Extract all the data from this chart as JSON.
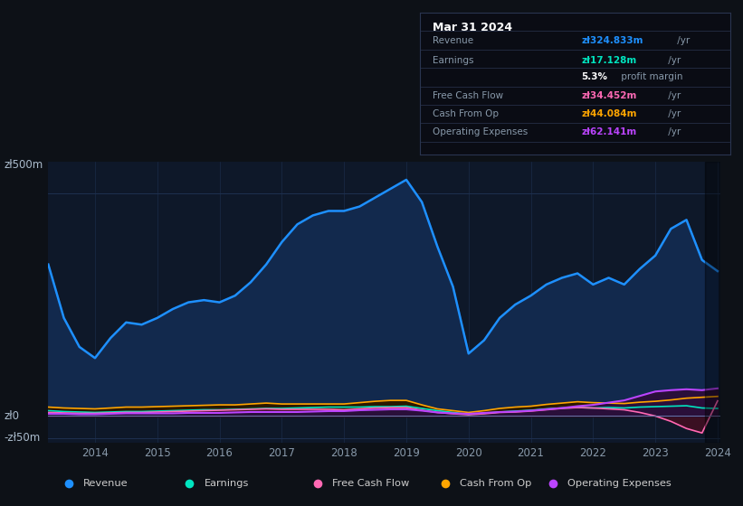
{
  "bg_color": "#0d1117",
  "plot_bg_color": "#0e1829",
  "grid_color": "#1e3050",
  "title": "Mar 31 2024",
  "info_rows": [
    {
      "label": "Revenue",
      "value": "zł324.833m",
      "unit": " /yr",
      "value_color": "#1e90ff",
      "label_color": "#8899aa"
    },
    {
      "label": "Earnings",
      "value": "zł17.128m",
      "unit": " /yr",
      "value_color": "#00e5c0",
      "label_color": "#8899aa"
    },
    {
      "label": "",
      "value": "5.3%",
      "unit": " profit margin",
      "value_color": "#ffffff",
      "label_color": "#8899aa"
    },
    {
      "label": "Free Cash Flow",
      "value": "zł34.452m",
      "unit": " /yr",
      "value_color": "#ff69b4",
      "label_color": "#8899aa"
    },
    {
      "label": "Cash From Op",
      "value": "zł44.084m",
      "unit": " /yr",
      "value_color": "#ffa500",
      "label_color": "#8899aa"
    },
    {
      "label": "Operating Expenses",
      "value": "zł62.141m",
      "unit": " /yr",
      "value_color": "#bb44ff",
      "label_color": "#8899aa"
    }
  ],
  "years": [
    2013.25,
    2013.5,
    2013.75,
    2014.0,
    2014.25,
    2014.5,
    2014.75,
    2015.0,
    2015.25,
    2015.5,
    2015.75,
    2016.0,
    2016.25,
    2016.5,
    2016.75,
    2017.0,
    2017.25,
    2017.5,
    2017.75,
    2018.0,
    2018.25,
    2018.5,
    2018.75,
    2019.0,
    2019.25,
    2019.5,
    2019.75,
    2020.0,
    2020.25,
    2020.5,
    2020.75,
    2021.0,
    2021.25,
    2021.5,
    2021.75,
    2022.0,
    2022.25,
    2022.5,
    2022.75,
    2023.0,
    2023.25,
    2023.5,
    2023.75,
    2024.0
  ],
  "revenue": [
    340,
    220,
    155,
    130,
    175,
    210,
    205,
    220,
    240,
    255,
    260,
    255,
    270,
    300,
    340,
    390,
    430,
    450,
    460,
    460,
    470,
    490,
    510,
    530,
    480,
    380,
    290,
    140,
    170,
    220,
    250,
    270,
    295,
    310,
    320,
    295,
    310,
    295,
    330,
    360,
    420,
    440,
    350,
    325
  ],
  "earnings": [
    12,
    10,
    9,
    8,
    9,
    10,
    10,
    11,
    12,
    13,
    14,
    14,
    15,
    16,
    17,
    17,
    18,
    19,
    20,
    20,
    20,
    21,
    21,
    22,
    17,
    12,
    8,
    4,
    6,
    9,
    11,
    13,
    16,
    18,
    19,
    18,
    19,
    18,
    20,
    21,
    22,
    23,
    18,
    17
  ],
  "free_cash_flow": [
    8,
    7,
    6,
    6,
    7,
    8,
    8,
    9,
    10,
    11,
    12,
    13,
    14,
    15,
    16,
    15,
    15,
    15,
    15,
    14,
    16,
    18,
    19,
    19,
    13,
    8,
    5,
    3,
    5,
    8,
    9,
    11,
    14,
    17,
    19,
    18,
    16,
    14,
    8,
    0,
    -12,
    -28,
    -38,
    34
  ],
  "cash_from_op": [
    20,
    18,
    17,
    16,
    18,
    20,
    20,
    21,
    22,
    23,
    24,
    25,
    25,
    27,
    29,
    27,
    27,
    27,
    27,
    27,
    30,
    33,
    35,
    35,
    25,
    16,
    12,
    8,
    12,
    17,
    20,
    22,
    26,
    29,
    32,
    30,
    29,
    28,
    31,
    33,
    36,
    40,
    42,
    44
  ],
  "operating_expenses": [
    5,
    5,
    4,
    4,
    5,
    6,
    6,
    6,
    6,
    7,
    7,
    7,
    8,
    9,
    9,
    9,
    9,
    10,
    11,
    11,
    13,
    14,
    15,
    15,
    12,
    8,
    6,
    5,
    7,
    9,
    10,
    12,
    15,
    18,
    22,
    25,
    30,
    35,
    45,
    55,
    58,
    60,
    58,
    62
  ],
  "ylim": [
    -60,
    570
  ],
  "ytick_vals": [
    -50,
    0,
    500
  ],
  "ytick_labels": [
    "-zł50m",
    "zł0",
    "zł500m"
  ],
  "xtick_vals": [
    2014,
    2015,
    2016,
    2017,
    2018,
    2019,
    2020,
    2021,
    2022,
    2023,
    2024
  ],
  "revenue_line": "#1e90ff",
  "revenue_fill": "#12294d",
  "earnings_line": "#00e5c0",
  "earnings_fill": "#0d2e28",
  "fcf_line": "#ff69b4",
  "fcf_fill": "#3a0f22",
  "cfo_line": "#ffa500",
  "cfo_fill": "#2a1800",
  "opex_line": "#bb44ff",
  "opex_fill": "#2a0f3a",
  "legend_items": [
    {
      "label": "Revenue",
      "color": "#1e90ff"
    },
    {
      "label": "Earnings",
      "color": "#00e5c0"
    },
    {
      "label": "Free Cash Flow",
      "color": "#ff69b4"
    },
    {
      "label": "Cash From Op",
      "color": "#ffa500"
    },
    {
      "label": "Operating Expenses",
      "color": "#bb44ff"
    }
  ],
  "infobox_bg": "#0a0c14",
  "infobox_border": "#2a3550"
}
